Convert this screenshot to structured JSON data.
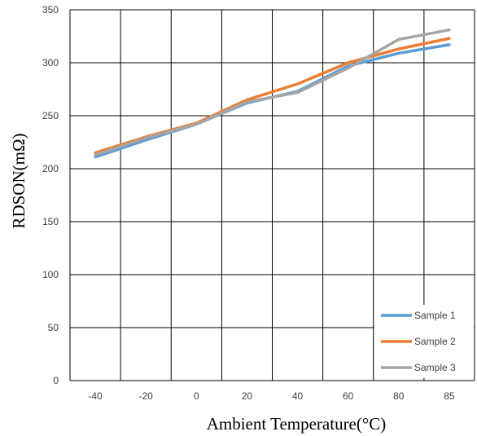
{
  "chart_data": {
    "type": "line",
    "xlabel": "Ambient Temperature(°C)",
    "ylabel": "RDSON(mΩ)",
    "categories": [
      "-40",
      "-20",
      "0",
      "20",
      "40",
      "60",
      "80",
      "85"
    ],
    "ylim": [
      0,
      350
    ],
    "yticks": [
      0,
      50,
      100,
      150,
      200,
      250,
      300,
      350
    ],
    "grid": true,
    "legend": "bottom-right",
    "series": [
      {
        "name": "Sample 1",
        "color": "#5b9bd5",
        "values": [
          211,
          227,
          242,
          262,
          273,
          297,
          309,
          317
        ]
      },
      {
        "name": "Sample 2",
        "color": "#ed7d31",
        "values": [
          215,
          230,
          243,
          265,
          280,
          300,
          313,
          323
        ]
      },
      {
        "name": "Sample 3",
        "color": "#a5a5a5",
        "values": [
          213,
          229,
          242,
          263,
          272,
          295,
          322,
          331
        ]
      }
    ]
  }
}
